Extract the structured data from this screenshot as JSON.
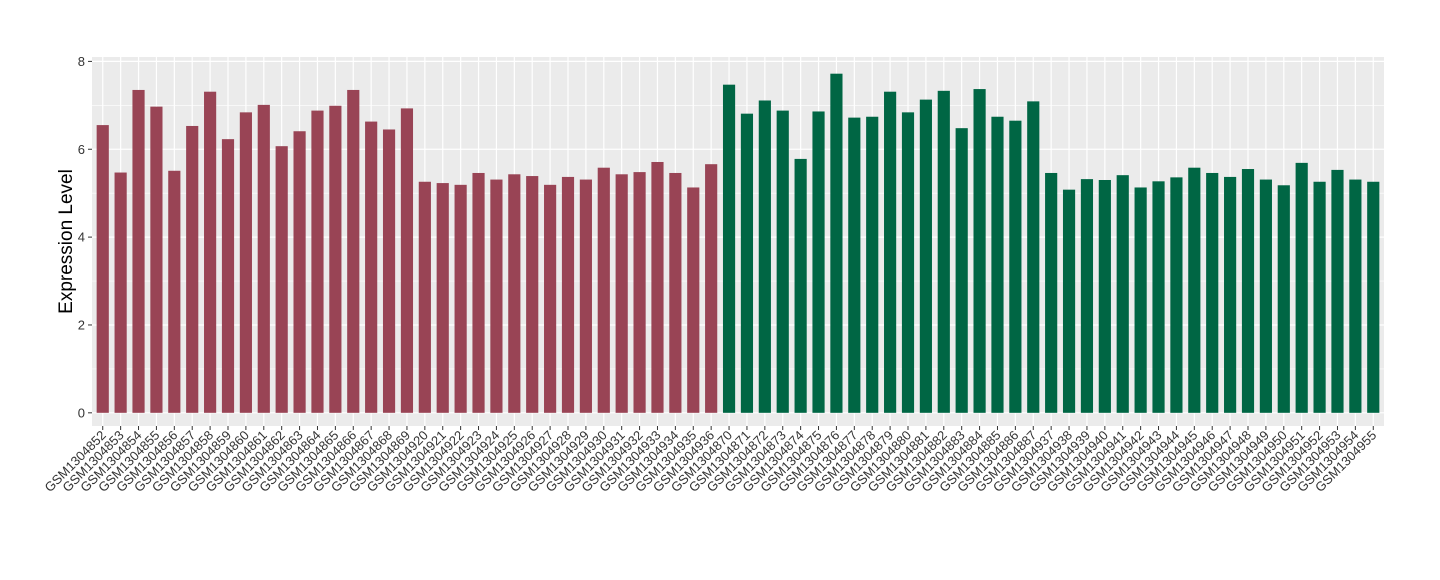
{
  "chart_data": {
    "type": "bar",
    "title": "",
    "xlabel": "",
    "ylabel": "Expression Level",
    "ylim": [
      -0.3,
      8.1
    ],
    "yticks": [
      0,
      2,
      4,
      6,
      8
    ],
    "grid": true,
    "legend": "none",
    "colors": {
      "group1": "#994455",
      "group2": "#006644",
      "panel_bg": "#EBEBEB",
      "grid": "#FFFFFF"
    },
    "categories": [
      "GSM1304852",
      "GSM1304853",
      "GSM1304854",
      "GSM1304855",
      "GSM1304856",
      "GSM1304857",
      "GSM1304858",
      "GSM1304859",
      "GSM1304860",
      "GSM1304861",
      "GSM1304862",
      "GSM1304863",
      "GSM1304864",
      "GSM1304865",
      "GSM1304866",
      "GSM1304867",
      "GSM1304868",
      "GSM1304869",
      "GSM1304920",
      "GSM1304921",
      "GSM1304922",
      "GSM1304923",
      "GSM1304924",
      "GSM1304925",
      "GSM1304926",
      "GSM1304927",
      "GSM1304928",
      "GSM1304929",
      "GSM1304930",
      "GSM1304931",
      "GSM1304932",
      "GSM1304933",
      "GSM1304934",
      "GSM1304935",
      "GSM1304936",
      "GSM1304870",
      "GSM1304871",
      "GSM1304872",
      "GSM1304873",
      "GSM1304874",
      "GSM1304875",
      "GSM1304876",
      "GSM1304877",
      "GSM1304878",
      "GSM1304879",
      "GSM1304880",
      "GSM1304881",
      "GSM1304882",
      "GSM1304883",
      "GSM1304884",
      "GSM1304885",
      "GSM1304886",
      "GSM1304887",
      "GSM1304937",
      "GSM1304938",
      "GSM1304939",
      "GSM1304940",
      "GSM1304941",
      "GSM1304942",
      "GSM1304943",
      "GSM1304944",
      "GSM1304945",
      "GSM1304946",
      "GSM1304947",
      "GSM1304948",
      "GSM1304949",
      "GSM1304950",
      "GSM1304951",
      "GSM1304952",
      "GSM1304953",
      "GSM1304954",
      "GSM1304955"
    ],
    "values": [
      6.55,
      5.47,
      7.35,
      6.97,
      5.51,
      6.53,
      7.31,
      6.23,
      6.84,
      7.01,
      6.07,
      6.41,
      6.88,
      6.99,
      7.35,
      6.63,
      6.45,
      6.93,
      5.26,
      5.23,
      5.19,
      5.46,
      5.31,
      5.43,
      5.39,
      5.19,
      5.37,
      5.31,
      5.58,
      5.43,
      5.48,
      5.71,
      5.46,
      5.13,
      5.66,
      7.47,
      6.81,
      7.11,
      6.88,
      5.78,
      6.86,
      7.72,
      6.72,
      6.74,
      7.31,
      6.84,
      7.13,
      7.33,
      6.48,
      7.37,
      6.74,
      6.65,
      7.09,
      5.46,
      5.08,
      5.32,
      5.3,
      5.41,
      5.13,
      5.27,
      5.36,
      5.58,
      5.46,
      5.37,
      5.55,
      5.31,
      5.18,
      5.69,
      5.26,
      5.53,
      5.31,
      5.26
    ],
    "groups": [
      1,
      1,
      1,
      1,
      1,
      1,
      1,
      1,
      1,
      1,
      1,
      1,
      1,
      1,
      1,
      1,
      1,
      1,
      1,
      1,
      1,
      1,
      1,
      1,
      1,
      1,
      1,
      1,
      1,
      1,
      1,
      1,
      1,
      1,
      1,
      2,
      2,
      2,
      2,
      2,
      2,
      2,
      2,
      2,
      2,
      2,
      2,
      2,
      2,
      2,
      2,
      2,
      2,
      2,
      2,
      2,
      2,
      2,
      2,
      2,
      2,
      2,
      2,
      2,
      2,
      2,
      2,
      2,
      2,
      2,
      2,
      2
    ]
  }
}
